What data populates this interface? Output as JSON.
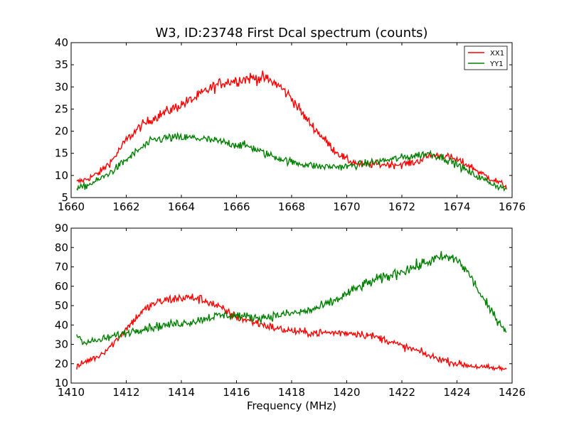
{
  "chart_data": [
    {
      "type": "line",
      "title": "W3, ID:23748 First Dcal spectrum (counts)",
      "xlabel": "",
      "ylabel": "",
      "xlim": [
        1660,
        1676
      ],
      "ylim": [
        5,
        40
      ],
      "xticks": [
        "1660",
        "1662",
        "1664",
        "1666",
        "1668",
        "1670",
        "1672",
        "1674",
        "1676"
      ],
      "yticks": [
        "5",
        "10",
        "15",
        "20",
        "25",
        "30",
        "35",
        "40"
      ],
      "legend_position": "top-right",
      "series": [
        {
          "name": "XX1",
          "color": "#ff0000",
          "x": [
            1660.2,
            1660.5,
            1661.0,
            1661.5,
            1662.0,
            1662.5,
            1663.0,
            1663.5,
            1664.0,
            1664.5,
            1665.0,
            1665.5,
            1666.0,
            1666.5,
            1667.0,
            1667.5,
            1668.0,
            1668.5,
            1669.0,
            1669.5,
            1670.0,
            1670.5,
            1671.0,
            1671.5,
            1672.0,
            1672.5,
            1673.0,
            1673.5,
            1674.0,
            1674.5,
            1675.0,
            1675.5,
            1675.8
          ],
          "values": [
            8.5,
            9.0,
            10.5,
            13.5,
            18.0,
            21.0,
            23.0,
            24.5,
            26.0,
            27.5,
            29.5,
            31.0,
            31.5,
            32.0,
            32.0,
            30.5,
            27.5,
            23.0,
            19.5,
            16.0,
            13.5,
            12.5,
            12.5,
            12.5,
            12.5,
            13.0,
            14.5,
            14.5,
            13.5,
            12.0,
            10.0,
            8.5,
            7.5
          ]
        },
        {
          "name": "YY1",
          "color": "#008000",
          "x": [
            1660.2,
            1660.5,
            1661.0,
            1661.5,
            1662.0,
            1662.5,
            1663.0,
            1663.5,
            1664.0,
            1664.5,
            1665.0,
            1665.5,
            1666.0,
            1666.5,
            1667.0,
            1667.5,
            1668.0,
            1668.5,
            1669.0,
            1669.5,
            1670.0,
            1670.5,
            1671.0,
            1671.5,
            1672.0,
            1672.5,
            1673.0,
            1673.5,
            1674.0,
            1674.5,
            1675.0,
            1675.5,
            1675.8
          ],
          "values": [
            7.0,
            7.5,
            9.0,
            11.0,
            13.5,
            16.0,
            18.0,
            18.5,
            18.5,
            18.5,
            18.0,
            17.5,
            17.0,
            16.5,
            15.0,
            14.0,
            13.0,
            12.5,
            12.0,
            12.0,
            12.0,
            12.5,
            13.0,
            13.5,
            14.0,
            14.5,
            15.0,
            14.0,
            12.5,
            10.5,
            9.0,
            7.5,
            7.0
          ]
        }
      ]
    },
    {
      "type": "line",
      "title": "",
      "xlabel": "Frequency (MHz)",
      "ylabel": "",
      "xlim": [
        1410,
        1426
      ],
      "ylim": [
        10,
        90
      ],
      "xticks": [
        "1410",
        "1412",
        "1414",
        "1416",
        "1418",
        "1420",
        "1422",
        "1424",
        "1426"
      ],
      "yticks": [
        "10",
        "20",
        "30",
        "40",
        "50",
        "60",
        "70",
        "80",
        "90"
      ],
      "series": [
        {
          "name": "XX1",
          "color": "#ff0000",
          "x": [
            1410.2,
            1410.5,
            1411.0,
            1411.5,
            1412.0,
            1412.5,
            1413.0,
            1413.5,
            1414.0,
            1414.5,
            1415.0,
            1415.5,
            1416.0,
            1416.5,
            1417.0,
            1417.5,
            1418.0,
            1418.5,
            1419.0,
            1419.5,
            1420.0,
            1420.5,
            1421.0,
            1421.5,
            1422.0,
            1422.5,
            1423.0,
            1423.5,
            1424.0,
            1424.5,
            1425.0,
            1425.5,
            1425.8
          ],
          "values": [
            18.0,
            21.0,
            24.0,
            30.0,
            38.0,
            46.0,
            51.0,
            53.0,
            54.0,
            54.0,
            52.0,
            48.0,
            44.0,
            42.0,
            40.0,
            38.0,
            37.0,
            36.0,
            36.0,
            36.0,
            36.0,
            35.5,
            34.0,
            32.0,
            29.0,
            27.0,
            24.0,
            22.0,
            20.0,
            19.0,
            18.0,
            17.5,
            17.5
          ]
        },
        {
          "name": "YY1",
          "color": "#008000",
          "x": [
            1410.2,
            1410.5,
            1411.0,
            1411.5,
            1412.0,
            1412.5,
            1413.0,
            1413.5,
            1414.0,
            1414.5,
            1415.0,
            1415.5,
            1416.0,
            1416.5,
            1417.0,
            1417.5,
            1418.0,
            1418.5,
            1419.0,
            1419.5,
            1420.0,
            1420.5,
            1421.0,
            1421.5,
            1422.0,
            1422.5,
            1423.0,
            1423.5,
            1424.0,
            1424.5,
            1425.0,
            1425.5,
            1425.8
          ],
          "values": [
            35.0,
            31.0,
            32.0,
            34.0,
            36.0,
            38.0,
            39.0,
            40.0,
            41.0,
            42.0,
            44.0,
            45.0,
            45.0,
            44.0,
            44.0,
            45.0,
            46.0,
            47.0,
            49.0,
            52.0,
            56.0,
            60.0,
            63.0,
            65.0,
            68.0,
            70.0,
            73.0,
            75.0,
            74.0,
            65.0,
            52.0,
            42.0,
            37.0
          ]
        }
      ]
    }
  ]
}
